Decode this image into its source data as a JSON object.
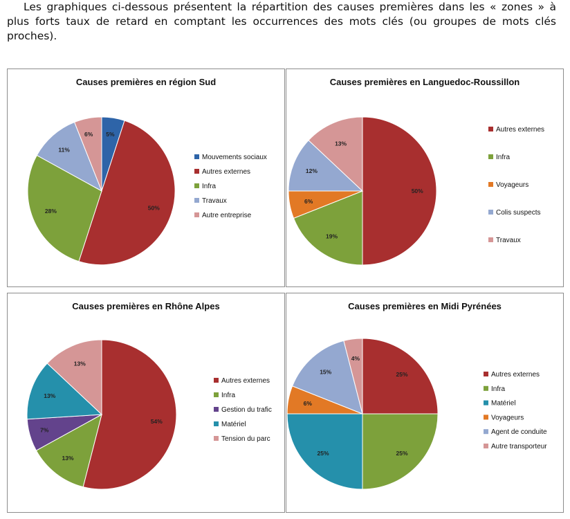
{
  "intro": "Les graphiques ci-dessous présentent la répartition des causes premières dans les « zones » à plus forts taux de retard en comptant les occurrences des mots clés (ou groupes de mots clés proches).",
  "colors": {
    "mouvements_sociaux": "#2e64a8",
    "autres_externes": "#a82f2f",
    "infra": "#7da13b",
    "travaux": "#94a8d0",
    "rose": "#d59696",
    "voyageurs": "#e27925",
    "gestion_trafic": "#63438c",
    "materiel": "#2590ab"
  },
  "chart_data": [
    {
      "type": "pie",
      "title": "Causes premières en région Sud",
      "slices": [
        {
          "label": "Mouvements sociaux",
          "value": 5,
          "color": "#2e64a8",
          "text": "5%"
        },
        {
          "label": "Autres externes",
          "value": 50,
          "color": "#a82f2f",
          "text": "50%"
        },
        {
          "label": "Infra",
          "value": 28,
          "color": "#7da13b",
          "text": "28%"
        },
        {
          "label": "Travaux",
          "value": 11,
          "color": "#94a8d0",
          "text": "11%"
        },
        {
          "label": "Autre entreprise",
          "value": 6,
          "color": "#d59696",
          "text": "6%"
        }
      ],
      "legend_position": "right"
    },
    {
      "type": "pie",
      "title": "Causes premières en Languedoc-Roussillon",
      "slices": [
        {
          "label": "Autres externes",
          "value": 50,
          "color": "#a82f2f",
          "text": "50%"
        },
        {
          "label": "Infra",
          "value": 19,
          "color": "#7da13b",
          "text": "19%"
        },
        {
          "label": "Voyageurs",
          "value": 6,
          "color": "#e27925",
          "text": "6%"
        },
        {
          "label": "Colis suspects",
          "value": 12,
          "color": "#94a8d0",
          "text": "12%"
        },
        {
          "label": "Travaux",
          "value": 13,
          "color": "#d59696",
          "text": "13%"
        }
      ],
      "legend_position": "right"
    },
    {
      "type": "pie",
      "title": "Causes premières en Rhône Alpes",
      "slices": [
        {
          "label": "Autres externes",
          "value": 54,
          "color": "#a82f2f",
          "text": "54%"
        },
        {
          "label": "Infra",
          "value": 13,
          "color": "#7da13b",
          "text": "13%"
        },
        {
          "label": "Gestion du trafic",
          "value": 7,
          "color": "#63438c",
          "text": "7%"
        },
        {
          "label": "Matériel",
          "value": 13,
          "color": "#2590ab",
          "text": "13%"
        },
        {
          "label": "Tension du parc",
          "value": 13,
          "color": "#d59696",
          "text": "13%"
        }
      ],
      "legend_position": "right"
    },
    {
      "type": "pie",
      "title": "Causes premières en Midi Pyrénées",
      "slices": [
        {
          "label": "Autres externes",
          "value": 25,
          "color": "#a82f2f",
          "text": "25%"
        },
        {
          "label": "Infra",
          "value": 25,
          "color": "#7da13b",
          "text": "25%"
        },
        {
          "label": "Matériel",
          "value": 25,
          "color": "#2590ab",
          "text": "25%"
        },
        {
          "label": "Voyageurs",
          "value": 6,
          "color": "#e27925",
          "text": "6%"
        },
        {
          "label": "Agent de conduite",
          "value": 15,
          "color": "#94a8d0",
          "text": "15%"
        },
        {
          "label": "Autre transporteur",
          "value": 4,
          "color": "#d59696",
          "text": "4%"
        }
      ],
      "legend_position": "right"
    }
  ]
}
